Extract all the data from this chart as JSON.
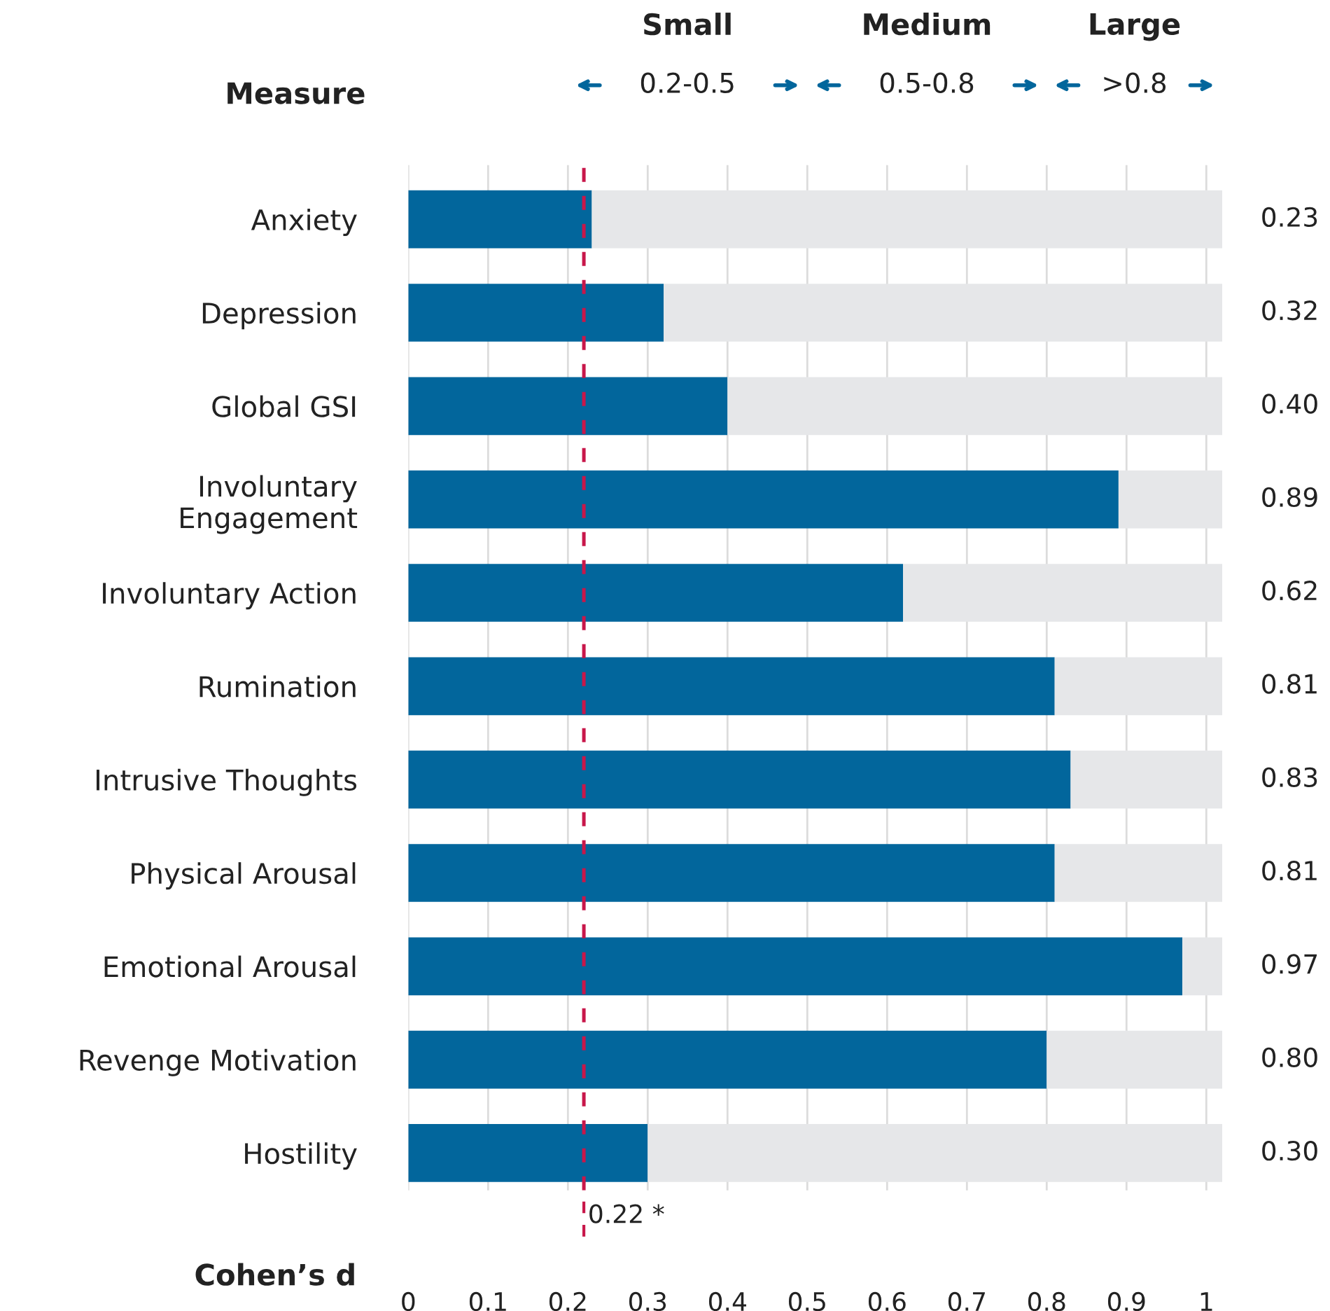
{
  "chart_data": {
    "type": "bar",
    "orientation": "horizontal",
    "stacked": true,
    "xlabel": "Cohen’s d",
    "ylabel": "Measure",
    "categories": [
      "Anxiety",
      "Depression",
      "Global GSI",
      "Involuntary\nEngagement",
      "Involuntary Action",
      "Rumination",
      "Intrusive Thoughts",
      "Physical Arousal",
      "Emotional Arousal",
      "Revenge Motivation",
      "Hostility"
    ],
    "series": [
      {
        "color": "#02669c",
        "values": [
          0.23,
          0.32,
          0.4,
          0.89,
          0.62,
          0.81,
          0.83,
          0.81,
          0.97,
          0.8,
          0.3
        ],
        "value_labels": [
          "0.23",
          "0.32",
          "0.40",
          "0.89",
          "0.62",
          "0.81",
          "0.83",
          "0.81",
          "0.97",
          "0.80",
          "0.30"
        ]
      },
      {
        "color": "#e6e7e9",
        "values": [
          0.79,
          0.7,
          0.62,
          0.13,
          0.4,
          0.21,
          0.19,
          0.21,
          0.05,
          0.22,
          0.72
        ]
      }
    ],
    "xlim": [
      0,
      1.02
    ],
    "xticks": [
      0,
      0.1,
      0.2,
      0.3,
      0.4,
      0.5,
      0.6,
      0.7,
      0.8,
      0.9,
      1
    ],
    "grid": "x",
    "ref_lines": [
      {
        "axis": "x",
        "value": 0.22,
        "label": "0.22 *",
        "color": "#c8174a",
        "line_style": "dashed"
      }
    ],
    "annotations": [
      "Small",
      "Medium",
      "Large",
      "0.2-0.5",
      "0.5-0.8",
      ">0.8"
    ]
  }
}
